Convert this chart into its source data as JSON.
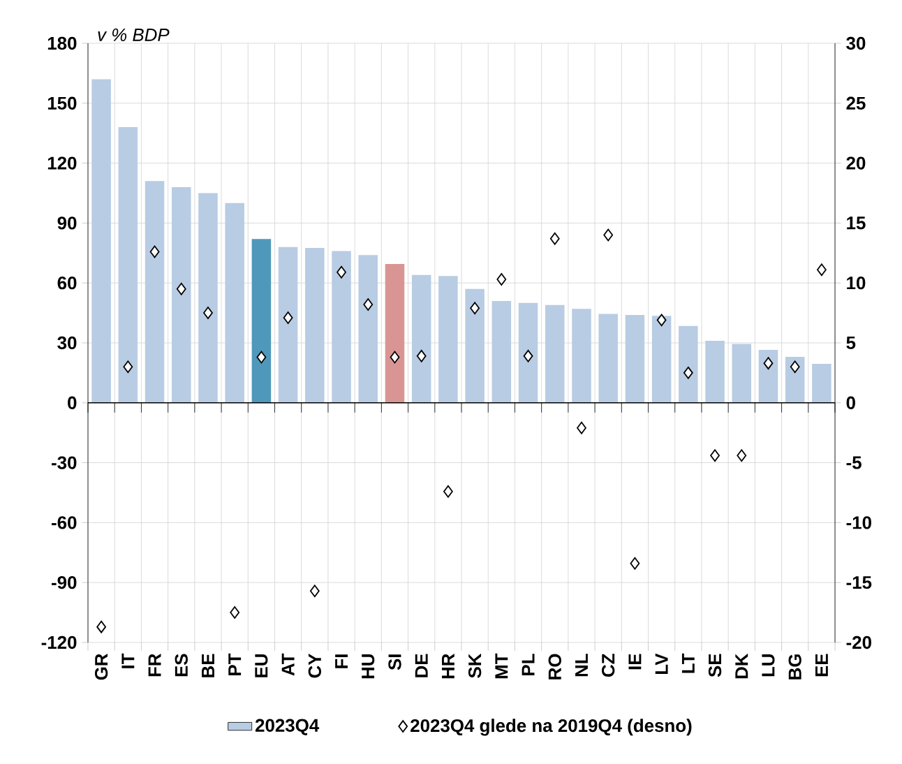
{
  "chart_data": {
    "type": "bar",
    "ylabel": "v % BDP",
    "categories": [
      "GR",
      "IT",
      "FR",
      "ES",
      "BE",
      "PT",
      "EU",
      "AT",
      "CY",
      "FI",
      "HU",
      "SI",
      "DE",
      "HR",
      "SK",
      "MT",
      "PL",
      "RO",
      "NL",
      "CZ",
      "IE",
      "LV",
      "LT",
      "SE",
      "DK",
      "LU",
      "BG",
      "EE"
    ],
    "series": [
      {
        "name": "2023Q4",
        "type": "bar",
        "color": "#b8cce4",
        "colors": [
          "#b8cce4",
          "#b8cce4",
          "#b8cce4",
          "#b8cce4",
          "#b8cce4",
          "#b8cce4",
          "#4f98bb",
          "#b8cce4",
          "#b8cce4",
          "#b8cce4",
          "#b8cce4",
          "#d99594",
          "#b8cce4",
          "#b8cce4",
          "#b8cce4",
          "#b8cce4",
          "#b8cce4",
          "#b8cce4",
          "#b8cce4",
          "#b8cce4",
          "#b8cce4",
          "#b8cce4",
          "#b8cce4",
          "#b8cce4",
          "#b8cce4",
          "#b8cce4",
          "#b8cce4",
          "#b8cce4"
        ],
        "values": [
          162,
          138,
          111,
          108,
          105,
          100,
          82,
          78,
          77.5,
          76,
          74,
          69.5,
          64,
          63.5,
          57,
          51,
          50,
          49,
          47,
          44.5,
          44,
          43.5,
          38.5,
          31,
          29.5,
          26.5,
          23,
          19.5
        ]
      },
      {
        "name": "2023Q4 glede na 2019Q4 (desno)",
        "type": "scatter",
        "axis": "y2",
        "marker": "diamond",
        "color": "#000000",
        "values": [
          -18.7,
          3.0,
          12.6,
          9.5,
          7.5,
          -17.5,
          3.8,
          7.1,
          -15.7,
          10.9,
          8.2,
          3.8,
          3.9,
          -7.4,
          7.9,
          10.3,
          3.9,
          13.7,
          -2.1,
          14.0,
          -13.4,
          6.9,
          2.5,
          -4.4,
          -4.4,
          3.3,
          3.0,
          11.1
        ]
      }
    ],
    "ylim": [
      -120,
      180
    ],
    "yticks": [
      -120,
      -90,
      -60,
      -30,
      0,
      30,
      60,
      90,
      120,
      150,
      180
    ],
    "y2lim": [
      -20,
      30
    ],
    "y2ticks": [
      -20,
      -15,
      -10,
      -5,
      0,
      5,
      10,
      15,
      20,
      25,
      30
    ],
    "grid": true,
    "legend": "bottom"
  }
}
